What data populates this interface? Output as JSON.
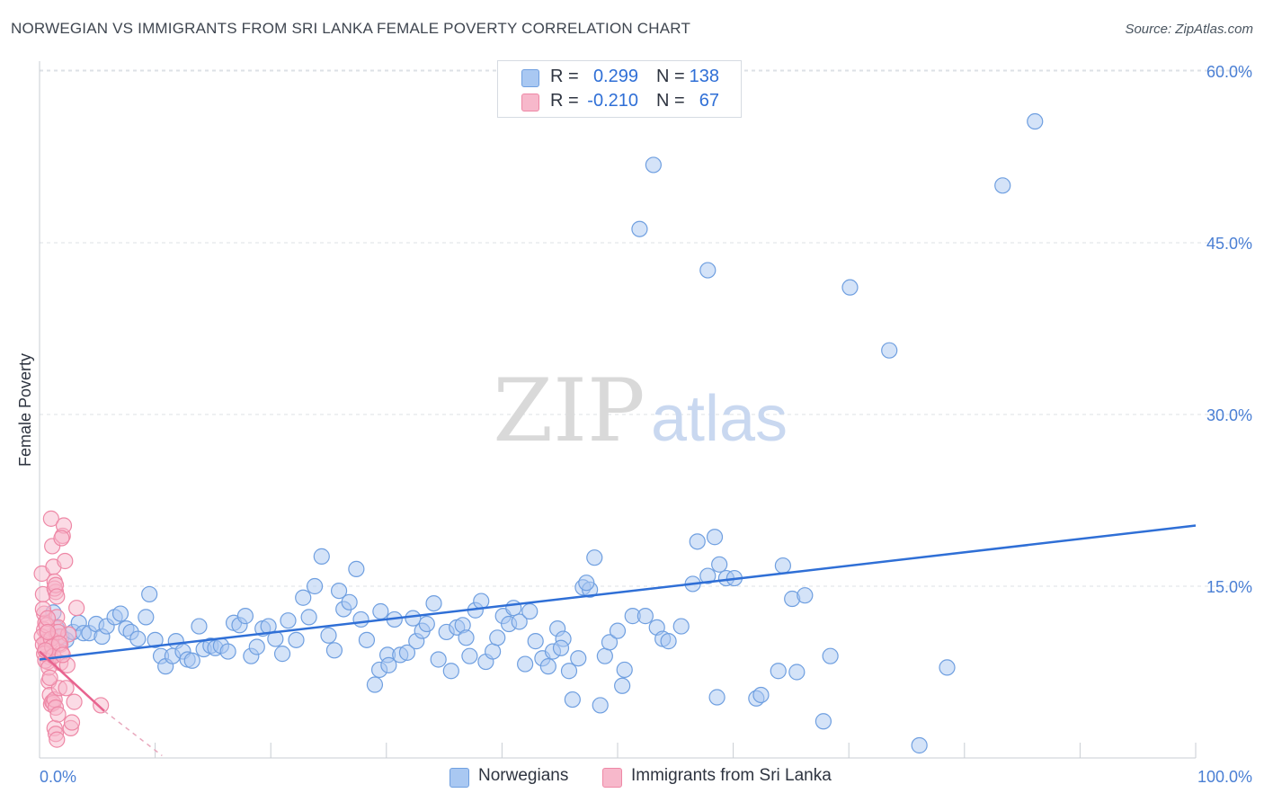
{
  "title": "NORWEGIAN VS IMMIGRANTS FROM SRI LANKA FEMALE POVERTY CORRELATION CHART",
  "source": "Source: ZipAtlas.com",
  "watermark": {
    "zip": "ZIP",
    "atlas": "atlas"
  },
  "colors": {
    "blue_fill": "#a9c8f2",
    "blue_stroke": "#6f9fe0",
    "blue_line": "#2f6fd6",
    "pink_fill": "#f7b8cb",
    "pink_stroke": "#ee88a6",
    "pink_line": "#e8638f",
    "grid": "#dde1e6",
    "tick_text": "#4a7fd4"
  },
  "legend": {
    "rows": [
      {
        "r_label": "R =",
        "r_value": "0.299",
        "n_label": "N =",
        "n_value": "138",
        "color": "#a9c8f2"
      },
      {
        "r_label": "R =",
        "r_value": "-0.210",
        "n_label": "N =",
        "n_value": "67",
        "color": "#f7b8cb"
      }
    ]
  },
  "bottom_legend": [
    {
      "label": "Norwegians",
      "color": "#a9c8f2"
    },
    {
      "label": "Immigrants from Sri Lanka",
      "color": "#f7b8cb"
    }
  ],
  "chart_data": {
    "type": "scatter",
    "ylabel": "Female Poverty",
    "xlabel": "",
    "xlim": [
      0,
      100
    ],
    "ylim": [
      0,
      63
    ],
    "x_tick_labels": [
      "0.0%",
      "100.0%"
    ],
    "y_ticks": [
      15,
      30,
      45,
      60
    ],
    "y_tick_labels": [
      "15.0%",
      "30.0%",
      "45.0%",
      "60.0%"
    ],
    "series": [
      {
        "name": "Norwegians",
        "trend": {
          "x0": 0,
          "y0": 8.6,
          "x1": 100,
          "y1": 20.3
        },
        "points": [
          [
            1.2,
            12.7
          ],
          [
            1.5,
            11.3
          ],
          [
            1.9,
            10.6
          ],
          [
            2.3,
            10.3
          ],
          [
            2.9,
            11.0
          ],
          [
            3.4,
            11.8
          ],
          [
            3.8,
            10.9
          ],
          [
            4.3,
            10.9
          ],
          [
            4.9,
            11.7
          ],
          [
            5.4,
            10.6
          ],
          [
            5.8,
            11.5
          ],
          [
            6.5,
            12.3
          ],
          [
            7.0,
            12.6
          ],
          [
            7.5,
            11.3
          ],
          [
            7.9,
            11.0
          ],
          [
            8.5,
            10.4
          ],
          [
            9.2,
            12.3
          ],
          [
            9.5,
            14.3
          ],
          [
            10.0,
            10.3
          ],
          [
            10.5,
            8.9
          ],
          [
            10.9,
            8.0
          ],
          [
            11.5,
            8.9
          ],
          [
            11.8,
            10.2
          ],
          [
            12.4,
            9.3
          ],
          [
            12.8,
            8.6
          ],
          [
            13.2,
            8.5
          ],
          [
            13.8,
            11.5
          ],
          [
            14.2,
            9.5
          ],
          [
            14.8,
            9.8
          ],
          [
            15.2,
            9.6
          ],
          [
            15.7,
            9.8
          ],
          [
            16.3,
            9.3
          ],
          [
            16.8,
            11.8
          ],
          [
            17.3,
            11.6
          ],
          [
            17.8,
            12.4
          ],
          [
            18.3,
            8.9
          ],
          [
            18.8,
            9.7
          ],
          [
            19.3,
            11.3
          ],
          [
            19.8,
            11.5
          ],
          [
            20.4,
            10.4
          ],
          [
            21.0,
            9.1
          ],
          [
            21.5,
            12.0
          ],
          [
            22.2,
            10.3
          ],
          [
            22.8,
            14.0
          ],
          [
            23.3,
            12.3
          ],
          [
            23.8,
            15.0
          ],
          [
            24.4,
            17.6
          ],
          [
            25.0,
            10.7
          ],
          [
            25.5,
            9.4
          ],
          [
            25.9,
            14.6
          ],
          [
            26.3,
            13.0
          ],
          [
            26.8,
            13.6
          ],
          [
            27.4,
            16.5
          ],
          [
            27.8,
            12.1
          ],
          [
            28.3,
            10.3
          ],
          [
            29.0,
            6.4
          ],
          [
            29.5,
            12.8
          ],
          [
            30.1,
            9.0
          ],
          [
            30.7,
            12.1
          ],
          [
            31.2,
            9.0
          ],
          [
            31.8,
            9.2
          ],
          [
            32.3,
            12.2
          ],
          [
            32.6,
            10.2
          ],
          [
            33.1,
            11.1
          ],
          [
            33.5,
            11.7
          ],
          [
            34.1,
            13.5
          ],
          [
            34.5,
            8.6
          ],
          [
            35.2,
            11.0
          ],
          [
            35.6,
            7.6
          ],
          [
            36.1,
            11.4
          ],
          [
            36.6,
            11.6
          ],
          [
            37.2,
            8.9
          ],
          [
            37.7,
            12.9
          ],
          [
            38.2,
            13.7
          ],
          [
            38.6,
            8.4
          ],
          [
            39.2,
            9.3
          ],
          [
            39.6,
            10.5
          ],
          [
            40.1,
            12.4
          ],
          [
            40.6,
            11.7
          ],
          [
            41.0,
            13.1
          ],
          [
            41.5,
            11.9
          ],
          [
            42.0,
            8.2
          ],
          [
            42.4,
            12.8
          ],
          [
            42.9,
            10.2
          ],
          [
            43.5,
            8.7
          ],
          [
            44.0,
            8.0
          ],
          [
            44.4,
            9.3
          ],
          [
            44.8,
            11.3
          ],
          [
            45.3,
            10.4
          ],
          [
            45.8,
            7.6
          ],
          [
            46.1,
            5.1
          ],
          [
            46.6,
            8.7
          ],
          [
            47.0,
            14.9
          ],
          [
            47.6,
            14.7
          ],
          [
            48.0,
            17.5
          ],
          [
            48.5,
            4.6
          ],
          [
            48.9,
            8.9
          ],
          [
            49.3,
            10.1
          ],
          [
            50.0,
            11.1
          ],
          [
            50.6,
            7.7
          ],
          [
            50.4,
            6.3
          ],
          [
            51.3,
            12.4
          ],
          [
            53.1,
            51.8
          ],
          [
            51.9,
            46.2
          ],
          [
            52.4,
            12.4
          ],
          [
            53.4,
            11.4
          ],
          [
            53.9,
            10.4
          ],
          [
            54.4,
            10.2
          ],
          [
            55.5,
            11.5
          ],
          [
            56.5,
            15.2
          ],
          [
            56.9,
            18.9
          ],
          [
            57.8,
            15.9
          ],
          [
            58.4,
            19.3
          ],
          [
            58.8,
            16.9
          ],
          [
            59.4,
            15.7
          ],
          [
            57.8,
            42.6
          ],
          [
            60.1,
            15.7
          ],
          [
            62.0,
            5.2
          ],
          [
            62.4,
            5.5
          ],
          [
            63.9,
            7.6
          ],
          [
            64.3,
            16.8
          ],
          [
            65.1,
            13.9
          ],
          [
            65.5,
            7.5
          ],
          [
            66.2,
            14.2
          ],
          [
            67.8,
            3.2
          ],
          [
            68.4,
            8.9
          ],
          [
            70.1,
            41.1
          ],
          [
            73.5,
            35.6
          ],
          [
            76.1,
            1.1
          ],
          [
            78.5,
            7.9
          ],
          [
            83.3,
            50.0
          ],
          [
            86.1,
            55.6
          ],
          [
            29.4,
            7.7
          ],
          [
            30.2,
            8.1
          ],
          [
            58.6,
            5.3
          ],
          [
            47.3,
            15.3
          ],
          [
            45.1,
            9.6
          ],
          [
            36.9,
            10.5
          ]
        ]
      },
      {
        "name": "Immigrants from Sri Lanka",
        "trend": {
          "x0": 0,
          "y0": 9.3,
          "x1": 5.6,
          "y1": 4.1,
          "dash_x1": 10.6,
          "dash_y1": 0.2
        },
        "points": [
          [
            0.2,
            16.1
          ],
          [
            0.3,
            14.3
          ],
          [
            0.4,
            12.6
          ],
          [
            0.5,
            11.8
          ],
          [
            0.6,
            10.9
          ],
          [
            0.7,
            10.3
          ],
          [
            0.8,
            9.6
          ],
          [
            0.9,
            8.8
          ],
          [
            0.3,
            13.0
          ],
          [
            0.4,
            11.2
          ],
          [
            0.5,
            10.1
          ],
          [
            0.6,
            9.3
          ],
          [
            0.7,
            8.4
          ],
          [
            0.8,
            6.7
          ],
          [
            0.9,
            5.5
          ],
          [
            1.0,
            4.7
          ],
          [
            1.1,
            4.9
          ],
          [
            1.2,
            4.8
          ],
          [
            1.3,
            5.1
          ],
          [
            1.4,
            4.4
          ],
          [
            1.0,
            20.9
          ],
          [
            1.1,
            18.5
          ],
          [
            1.2,
            16.7
          ],
          [
            1.3,
            15.4
          ],
          [
            1.4,
            14.5
          ],
          [
            1.5,
            12.3
          ],
          [
            1.6,
            11.4
          ],
          [
            1.7,
            10.6
          ],
          [
            1.8,
            9.9
          ],
          [
            1.9,
            9.2
          ],
          [
            1.3,
            2.6
          ],
          [
            1.4,
            2.1
          ],
          [
            1.5,
            1.6
          ],
          [
            1.6,
            3.8
          ],
          [
            1.7,
            6.1
          ],
          [
            1.8,
            8.3
          ],
          [
            2.0,
            19.4
          ],
          [
            2.1,
            20.3
          ],
          [
            2.2,
            17.2
          ],
          [
            2.3,
            6.1
          ],
          [
            2.4,
            8.1
          ],
          [
            2.5,
            10.8
          ],
          [
            2.7,
            2.6
          ],
          [
            2.8,
            3.1
          ],
          [
            3.0,
            4.9
          ],
          [
            3.2,
            13.1
          ],
          [
            0.2,
            10.6
          ],
          [
            0.3,
            9.9
          ],
          [
            0.4,
            9.1
          ],
          [
            0.5,
            8.5
          ],
          [
            0.6,
            11.6
          ],
          [
            0.7,
            12.2
          ],
          [
            0.8,
            7.9
          ],
          [
            0.9,
            7.0
          ],
          [
            1.0,
            10.4
          ],
          [
            1.1,
            9.7
          ],
          [
            1.2,
            8.9
          ],
          [
            1.3,
            14.8
          ],
          [
            1.4,
            15.1
          ],
          [
            1.5,
            14.1
          ],
          [
            1.6,
            11.0
          ],
          [
            1.7,
            10.0
          ],
          [
            1.9,
            19.2
          ],
          [
            2.0,
            9.0
          ],
          [
            5.3,
            4.6
          ],
          [
            0.5,
            9.4
          ],
          [
            0.7,
            11.0
          ]
        ]
      }
    ]
  }
}
